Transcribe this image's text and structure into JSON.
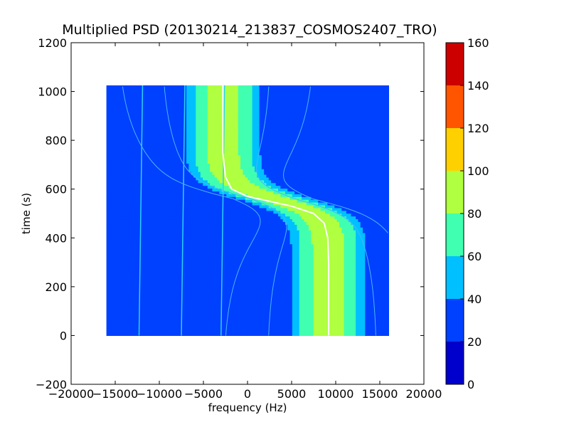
{
  "chart_data": {
    "type": "heatmap",
    "title": "Multiplied PSD (20130214_213837_COSMOS2407_TRO)",
    "xlabel": "frequency (Hz)",
    "ylabel": "time (s)",
    "xlim": [
      -20000,
      20000
    ],
    "ylim": [
      -200,
      1200
    ],
    "x_ticks": [
      -20000,
      -15000,
      -10000,
      -5000,
      0,
      5000,
      10000,
      15000,
      20000
    ],
    "x_tick_labels": [
      "−20000",
      "−15000",
      "−10000",
      "−5000",
      "0",
      "5000",
      "10000",
      "15000",
      "20000"
    ],
    "y_ticks": [
      -200,
      0,
      200,
      400,
      600,
      800,
      1000,
      1200
    ],
    "y_tick_labels": [
      "−200",
      "0",
      "200",
      "400",
      "600",
      "800",
      "1000",
      "1200"
    ],
    "data_extent": {
      "freq_min": -16000,
      "freq_max": 16000,
      "time_min": 0,
      "time_max": 1025
    },
    "background_level": 30,
    "colorbar": {
      "ticks": [
        0,
        20,
        40,
        60,
        80,
        100,
        120,
        140,
        160
      ],
      "tick_labels": [
        "0",
        "20",
        "40",
        "60",
        "80",
        "100",
        "120",
        "140",
        "160"
      ],
      "colors": [
        "#0000cd",
        "#0040ff",
        "#00c0ff",
        "#40ffb0",
        "#b0ff40",
        "#ffd000",
        "#ff5500",
        "#cd0000"
      ]
    },
    "doppler_band": {
      "description_level_bins": [
        "40-60",
        "60-80",
        "80-100"
      ],
      "freq_at_start": 9200,
      "freq_at_end": -2800,
      "closest_approach_time": 560,
      "curve_white": [
        {
          "t": 0,
          "f": 9200
        },
        {
          "t": 100,
          "f": 9200
        },
        {
          "t": 200,
          "f": 9200
        },
        {
          "t": 300,
          "f": 9200
        },
        {
          "t": 400,
          "f": 9100
        },
        {
          "t": 460,
          "f": 8700
        },
        {
          "t": 500,
          "f": 7500
        },
        {
          "t": 530,
          "f": 5000
        },
        {
          "t": 550,
          "f": 2500
        },
        {
          "t": 570,
          "f": 0
        },
        {
          "t": 600,
          "f": -1800
        },
        {
          "t": 650,
          "f": -2500
        },
        {
          "t": 750,
          "f": -2800
        },
        {
          "t": 900,
          "f": -2800
        },
        {
          "t": 1025,
          "f": -2800
        }
      ]
    },
    "vertical_lines_hz": [
      -12300,
      -7500,
      -3000
    ],
    "color_legend_label": ""
  }
}
